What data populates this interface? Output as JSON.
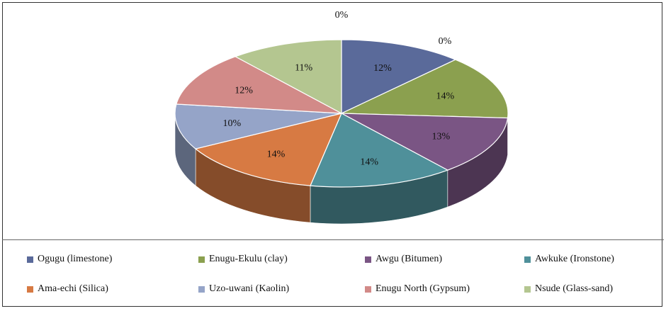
{
  "chart_data": {
    "type": "pie",
    "style": "3d",
    "categories": [
      "Ogugu (limestone)",
      "Enugu-Ekulu (clay)",
      "Awgu (Bitumen)",
      "Awkuke (Ironstone)",
      "Ama-echi (Silica)",
      "Uzo-uwani (Kaolin)",
      "Enugu North (Gypsum)",
      "Nsude (Glass-sand)"
    ],
    "values": [
      12,
      14,
      13,
      14,
      14,
      10,
      12,
      11
    ],
    "data_labels": [
      "12%",
      "14%",
      "13%",
      "14%",
      "14%",
      "10%",
      "12%",
      "11%"
    ],
    "extra_labels": [
      "0%",
      "0%"
    ],
    "colors": [
      "#5A6A9A",
      "#8BA04F",
      "#7A5584",
      "#4F909A",
      "#D77A43",
      "#95A4C8",
      "#D28A88",
      "#B4C690"
    ],
    "legend_position": "bottom"
  }
}
